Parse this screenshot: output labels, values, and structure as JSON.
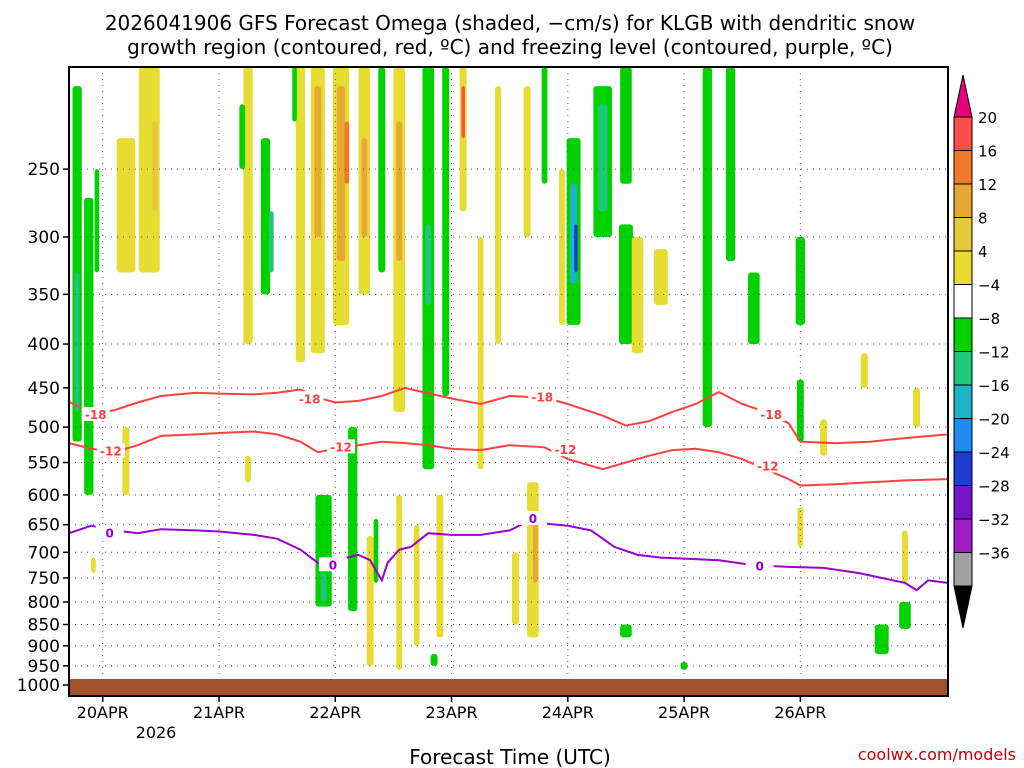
{
  "chart_data": {
    "type": "heatmap",
    "title_line1": "2026041906 GFS Forecast Omega (shaded, −cm/s) for KLGB with dendritic snow",
    "title_line2": "growth region (contoured, red, ºC) and freezing level (contoured, purple, ºC)",
    "xlabel": "Forecast Time (UTC)",
    "credit": "coolwx.com/models",
    "x_range_days": [
      -0.29,
      7.27
    ],
    "x_ticks": [
      {
        "label": "20APR",
        "day": 0
      },
      {
        "label": "21APR",
        "day": 1
      },
      {
        "label": "22APR",
        "day": 2
      },
      {
        "label": "23APR",
        "day": 3
      },
      {
        "label": "24APR",
        "day": 4
      },
      {
        "label": "25APR",
        "day": 5
      },
      {
        "label": "26APR",
        "day": 6
      }
    ],
    "x_year_label": "2026",
    "y_range_hpa": [
      1030,
      190
    ],
    "y_ticks": [
      250,
      300,
      350,
      400,
      450,
      500,
      550,
      600,
      650,
      700,
      750,
      800,
      850,
      900,
      950,
      1000
    ],
    "colorbar": {
      "labels": [
        "20",
        "16",
        "12",
        "8",
        "4",
        "−4",
        "−8",
        "−12",
        "−16",
        "−20",
        "−24",
        "−28",
        "−32",
        "−36"
      ],
      "colors": [
        "#ff4d4d",
        "#f07828",
        "#e6a832",
        "#e6c83c",
        "#e6dc32",
        "#ffffff",
        "#00d200",
        "#1ec878",
        "#1eb4c8",
        "#1e8cf0",
        "#1e3cd2",
        "#7814c8",
        "#a01ec8",
        "#a0a0a0"
      ],
      "top_arrow": "#e6007a",
      "bottom_arrow": "#000000"
    },
    "contours": [
      {
        "label": "-18",
        "color": "#ff4040",
        "points": [
          [
            -0.29,
            467
          ],
          [
            -0.1,
            482
          ],
          [
            0.1,
            478
          ],
          [
            0.3,
            468
          ],
          [
            0.5,
            460
          ],
          [
            0.8,
            456
          ],
          [
            1.0,
            457
          ],
          [
            1.3,
            458
          ],
          [
            1.5,
            456
          ],
          [
            1.7,
            452
          ],
          [
            1.85,
            462
          ],
          [
            2.0,
            468
          ],
          [
            2.2,
            466
          ],
          [
            2.4,
            460
          ],
          [
            2.6,
            450
          ],
          [
            2.75,
            455
          ],
          [
            3.0,
            463
          ],
          [
            3.25,
            470
          ],
          [
            3.5,
            460
          ],
          [
            3.8,
            462
          ],
          [
            4.0,
            470
          ],
          [
            4.3,
            485
          ],
          [
            4.5,
            498
          ],
          [
            4.7,
            492
          ],
          [
            4.9,
            480
          ],
          [
            5.1,
            470
          ],
          [
            5.3,
            455
          ],
          [
            5.5,
            470
          ],
          [
            5.7,
            480
          ],
          [
            5.9,
            495
          ],
          [
            6.0,
            520
          ],
          [
            6.3,
            522
          ],
          [
            6.6,
            520
          ],
          [
            6.9,
            515
          ],
          [
            7.27,
            510
          ]
        ]
      },
      {
        "label": "-12",
        "color": "#ff4040",
        "points": [
          [
            -0.29,
            522
          ],
          [
            -0.1,
            530
          ],
          [
            0.1,
            535
          ],
          [
            0.3,
            525
          ],
          [
            0.5,
            512
          ],
          [
            0.8,
            510
          ],
          [
            1.0,
            508
          ],
          [
            1.3,
            506
          ],
          [
            1.5,
            510
          ],
          [
            1.7,
            520
          ],
          [
            1.85,
            535
          ],
          [
            2.0,
            530
          ],
          [
            2.2,
            525
          ],
          [
            2.4,
            520
          ],
          [
            2.6,
            522
          ],
          [
            2.8,
            525
          ],
          [
            3.0,
            530
          ],
          [
            3.25,
            532
          ],
          [
            3.5,
            525
          ],
          [
            3.8,
            528
          ],
          [
            4.0,
            545
          ],
          [
            4.3,
            560
          ],
          [
            4.5,
            550
          ],
          [
            4.7,
            540
          ],
          [
            4.9,
            532
          ],
          [
            5.1,
            530
          ],
          [
            5.3,
            535
          ],
          [
            5.5,
            545
          ],
          [
            5.7,
            560
          ],
          [
            5.9,
            575
          ],
          [
            6.0,
            585
          ],
          [
            6.3,
            583
          ],
          [
            6.6,
            580
          ],
          [
            6.9,
            577
          ],
          [
            7.27,
            575
          ]
        ]
      },
      {
        "label": "0",
        "color": "#9900cc",
        "points": [
          [
            -0.29,
            665
          ],
          [
            -0.1,
            652
          ],
          [
            0.1,
            660
          ],
          [
            0.3,
            665
          ],
          [
            0.5,
            658
          ],
          [
            0.8,
            660
          ],
          [
            1.0,
            662
          ],
          [
            1.3,
            668
          ],
          [
            1.5,
            675
          ],
          [
            1.7,
            695
          ],
          [
            1.85,
            720
          ],
          [
            2.0,
            730
          ],
          [
            2.1,
            710
          ],
          [
            2.2,
            705
          ],
          [
            2.3,
            715
          ],
          [
            2.4,
            755
          ],
          [
            2.45,
            720
          ],
          [
            2.55,
            695
          ],
          [
            2.65,
            690
          ],
          [
            2.8,
            665
          ],
          [
            3.0,
            668
          ],
          [
            3.25,
            668
          ],
          [
            3.5,
            660
          ],
          [
            3.7,
            640
          ],
          [
            3.8,
            648
          ],
          [
            4.0,
            652
          ],
          [
            4.2,
            660
          ],
          [
            4.4,
            690
          ],
          [
            4.6,
            705
          ],
          [
            4.8,
            710
          ],
          [
            5.0,
            712
          ],
          [
            5.3,
            715
          ],
          [
            5.6,
            725
          ],
          [
            5.9,
            728
          ],
          [
            6.2,
            730
          ],
          [
            6.5,
            740
          ],
          [
            6.9,
            760
          ],
          [
            7.0,
            775
          ],
          [
            7.1,
            755
          ],
          [
            7.27,
            760
          ]
        ]
      }
    ],
    "contour_labels": [
      {
        "text": "-18",
        "color": "#ff4040",
        "day": -0.06,
        "hpa": 484
      },
      {
        "text": "-18",
        "color": "#ff4040",
        "day": 1.78,
        "hpa": 464
      },
      {
        "text": "-18",
        "color": "#ff4040",
        "day": 3.78,
        "hpa": 462
      },
      {
        "text": "-18",
        "color": "#ff4040",
        "day": 5.75,
        "hpa": 484
      },
      {
        "text": "-12",
        "color": "#ff4040",
        "day": 0.07,
        "hpa": 534
      },
      {
        "text": "-12",
        "color": "#ff4040",
        "day": 2.05,
        "hpa": 528
      },
      {
        "text": "-12",
        "color": "#ff4040",
        "day": 3.98,
        "hpa": 532
      },
      {
        "text": "-12",
        "color": "#ff4040",
        "day": 5.72,
        "hpa": 556
      },
      {
        "text": "0",
        "color": "#9900cc",
        "day": 0.06,
        "hpa": 666
      },
      {
        "text": "0",
        "color": "#9900cc",
        "day": 1.98,
        "hpa": 725
      },
      {
        "text": "0",
        "color": "#9900cc",
        "day": 3.7,
        "hpa": 640
      },
      {
        "text": "0",
        "color": "#9900cc",
        "day": 5.65,
        "hpa": 727
      }
    ],
    "omega_patches": [
      {
        "day": -0.22,
        "p0": 200,
        "p1": 520,
        "w": 0.08,
        "c": "#00d200"
      },
      {
        "day": -0.22,
        "p0": 330,
        "p1": 480,
        "w": 0.04,
        "c": "#1ec878"
      },
      {
        "day": -0.12,
        "p0": 270,
        "p1": 600,
        "w": 0.08,
        "c": "#00d200"
      },
      {
        "day": -0.05,
        "p0": 250,
        "p1": 330,
        "w": 0.04,
        "c": "#00d200"
      },
      {
        "day": 0.2,
        "p0": 230,
        "p1": 330,
        "w": 0.16,
        "c": "#e6dc32"
      },
      {
        "day": 0.4,
        "p0": 190,
        "p1": 330,
        "w": 0.18,
        "c": "#e6dc32"
      },
      {
        "day": 0.45,
        "p0": 220,
        "p1": 280,
        "w": 0.05,
        "c": "#e6c83c"
      },
      {
        "day": 1.25,
        "p0": 190,
        "p1": 400,
        "w": 0.08,
        "c": "#e6dc32"
      },
      {
        "day": 1.2,
        "p0": 210,
        "p1": 250,
        "w": 0.05,
        "c": "#00d200"
      },
      {
        "day": 1.4,
        "p0": 230,
        "p1": 350,
        "w": 0.08,
        "c": "#00d200"
      },
      {
        "day": 1.45,
        "p0": 280,
        "p1": 330,
        "w": 0.04,
        "c": "#1ec878"
      },
      {
        "day": 1.7,
        "p0": 190,
        "p1": 420,
        "w": 0.08,
        "c": "#e6dc32"
      },
      {
        "day": 1.65,
        "p0": 190,
        "p1": 220,
        "w": 0.04,
        "c": "#00d200"
      },
      {
        "day": 1.85,
        "p0": 190,
        "p1": 410,
        "w": 0.12,
        "c": "#e6dc32"
      },
      {
        "day": 1.85,
        "p0": 200,
        "p1": 300,
        "w": 0.06,
        "c": "#e6a832"
      },
      {
        "day": 2.05,
        "p0": 190,
        "p1": 380,
        "w": 0.14,
        "c": "#e6dc32"
      },
      {
        "day": 2.05,
        "p0": 200,
        "p1": 320,
        "w": 0.07,
        "c": "#e6a832"
      },
      {
        "day": 2.1,
        "p0": 220,
        "p1": 260,
        "w": 0.04,
        "c": "#f07828"
      },
      {
        "day": 2.25,
        "p0": 190,
        "p1": 350,
        "w": 0.1,
        "c": "#e6dc32"
      },
      {
        "day": 2.25,
        "p0": 230,
        "p1": 300,
        "w": 0.05,
        "c": "#e6a832"
      },
      {
        "day": 2.4,
        "p0": 190,
        "p1": 330,
        "w": 0.06,
        "c": "#00d200"
      },
      {
        "day": 2.55,
        "p0": 190,
        "p1": 480,
        "w": 0.1,
        "c": "#e6dc32"
      },
      {
        "day": 2.55,
        "p0": 220,
        "p1": 320,
        "w": 0.05,
        "c": "#e6a832"
      },
      {
        "day": 2.8,
        "p0": 190,
        "p1": 560,
        "w": 0.1,
        "c": "#00d200"
      },
      {
        "day": 2.8,
        "p0": 290,
        "p1": 360,
        "w": 0.05,
        "c": "#1ec878"
      },
      {
        "day": 2.95,
        "p0": 190,
        "p1": 460,
        "w": 0.06,
        "c": "#00d200"
      },
      {
        "day": 3.1,
        "p0": 190,
        "p1": 280,
        "w": 0.06,
        "c": "#e6dc32"
      },
      {
        "day": 3.1,
        "p0": 200,
        "p1": 230,
        "w": 0.03,
        "c": "#ff4d4d"
      },
      {
        "day": 3.25,
        "p0": 300,
        "p1": 560,
        "w": 0.05,
        "c": "#e6dc32"
      },
      {
        "day": 3.4,
        "p0": 200,
        "p1": 400,
        "w": 0.05,
        "c": "#e6dc32"
      },
      {
        "day": 3.65,
        "p0": 200,
        "p1": 300,
        "w": 0.06,
        "c": "#e6dc32"
      },
      {
        "day": 3.8,
        "p0": 190,
        "p1": 260,
        "w": 0.05,
        "c": "#00d200"
      },
      {
        "day": 3.95,
        "p0": 250,
        "p1": 380,
        "w": 0.05,
        "c": "#e6dc32"
      },
      {
        "day": 4.05,
        "p0": 230,
        "p1": 380,
        "w": 0.12,
        "c": "#00d200"
      },
      {
        "day": 4.05,
        "p0": 260,
        "p1": 340,
        "w": 0.06,
        "c": "#1eb4c8"
      },
      {
        "day": 4.07,
        "p0": 290,
        "p1": 330,
        "w": 0.03,
        "c": "#1e3cd2"
      },
      {
        "day": 4.3,
        "p0": 200,
        "p1": 300,
        "w": 0.16,
        "c": "#00d200"
      },
      {
        "day": 4.3,
        "p0": 210,
        "p1": 280,
        "w": 0.08,
        "c": "#1ec878"
      },
      {
        "day": 4.5,
        "p0": 190,
        "p1": 260,
        "w": 0.1,
        "c": "#00d200"
      },
      {
        "day": 4.5,
        "p0": 290,
        "p1": 400,
        "w": 0.12,
        "c": "#00d200"
      },
      {
        "day": 4.6,
        "p0": 300,
        "p1": 410,
        "w": 0.1,
        "c": "#e6dc32"
      },
      {
        "day": 4.8,
        "p0": 310,
        "p1": 360,
        "w": 0.12,
        "c": "#e6dc32"
      },
      {
        "day": 5.2,
        "p0": 190,
        "p1": 500,
        "w": 0.08,
        "c": "#00d200"
      },
      {
        "day": 5.4,
        "p0": 190,
        "p1": 320,
        "w": 0.08,
        "c": "#00d200"
      },
      {
        "day": 5.6,
        "p0": 330,
        "p1": 400,
        "w": 0.1,
        "c": "#00d200"
      },
      {
        "day": 6.0,
        "p0": 300,
        "p1": 380,
        "w": 0.08,
        "c": "#00d200"
      },
      {
        "day": 6.55,
        "p0": 410,
        "p1": 450,
        "w": 0.06,
        "c": "#e6dc32"
      },
      {
        "day": 6.0,
        "p0": 440,
        "p1": 520,
        "w": 0.06,
        "c": "#00d200"
      },
      {
        "day": 6.2,
        "p0": 490,
        "p1": 540,
        "w": 0.06,
        "c": "#e6dc32"
      },
      {
        "day": 7.0,
        "p0": 450,
        "p1": 500,
        "w": 0.06,
        "c": "#e6dc32"
      },
      {
        "day": 0.2,
        "p0": 500,
        "p1": 600,
        "w": 0.06,
        "c": "#e6dc32"
      },
      {
        "day": 1.25,
        "p0": 540,
        "p1": 580,
        "w": 0.05,
        "c": "#e6dc32"
      },
      {
        "day": 1.9,
        "p0": 600,
        "p1": 810,
        "w": 0.14,
        "c": "#00d200"
      },
      {
        "day": 1.9,
        "p0": 740,
        "p1": 800,
        "w": 0.05,
        "c": "#1ec878"
      },
      {
        "day": 2.15,
        "p0": 500,
        "p1": 820,
        "w": 0.08,
        "c": "#00d200"
      },
      {
        "day": 2.3,
        "p0": 670,
        "p1": 950,
        "w": 0.06,
        "c": "#e6dc32"
      },
      {
        "day": 2.35,
        "p0": 640,
        "p1": 760,
        "w": 0.04,
        "c": "#00d200"
      },
      {
        "day": 2.55,
        "p0": 600,
        "p1": 960,
        "w": 0.05,
        "c": "#e6dc32"
      },
      {
        "day": 2.7,
        "p0": 650,
        "p1": 900,
        "w": 0.05,
        "c": "#e6dc32"
      },
      {
        "day": 2.9,
        "p0": 600,
        "p1": 880,
        "w": 0.06,
        "c": "#e6dc32"
      },
      {
        "day": 3.55,
        "p0": 700,
        "p1": 850,
        "w": 0.06,
        "c": "#e6dc32"
      },
      {
        "day": 3.7,
        "p0": 580,
        "p1": 880,
        "w": 0.1,
        "c": "#e6dc32"
      },
      {
        "day": 3.72,
        "p0": 630,
        "p1": 760,
        "w": 0.04,
        "c": "#e6a832"
      },
      {
        "day": 4.5,
        "p0": 850,
        "p1": 880,
        "w": 0.1,
        "c": "#00d200"
      },
      {
        "day": 5.0,
        "p0": 940,
        "p1": 960,
        "w": 0.06,
        "c": "#00d200"
      },
      {
        "day": 6.7,
        "p0": 850,
        "p1": 920,
        "w": 0.12,
        "c": "#00d200"
      },
      {
        "day": 6.9,
        "p0": 800,
        "p1": 860,
        "w": 0.1,
        "c": "#00d200"
      },
      {
        "day": 6.9,
        "p0": 660,
        "p1": 760,
        "w": 0.05,
        "c": "#e6dc32"
      },
      {
        "day": 6.0,
        "p0": 620,
        "p1": 690,
        "w": 0.05,
        "c": "#e6dc32"
      },
      {
        "day": -0.08,
        "p0": 710,
        "p1": 740,
        "w": 0.04,
        "c": "#e6dc32"
      },
      {
        "day": 2.85,
        "p0": 920,
        "p1": 950,
        "w": 0.06,
        "c": "#00d200"
      }
    ]
  }
}
